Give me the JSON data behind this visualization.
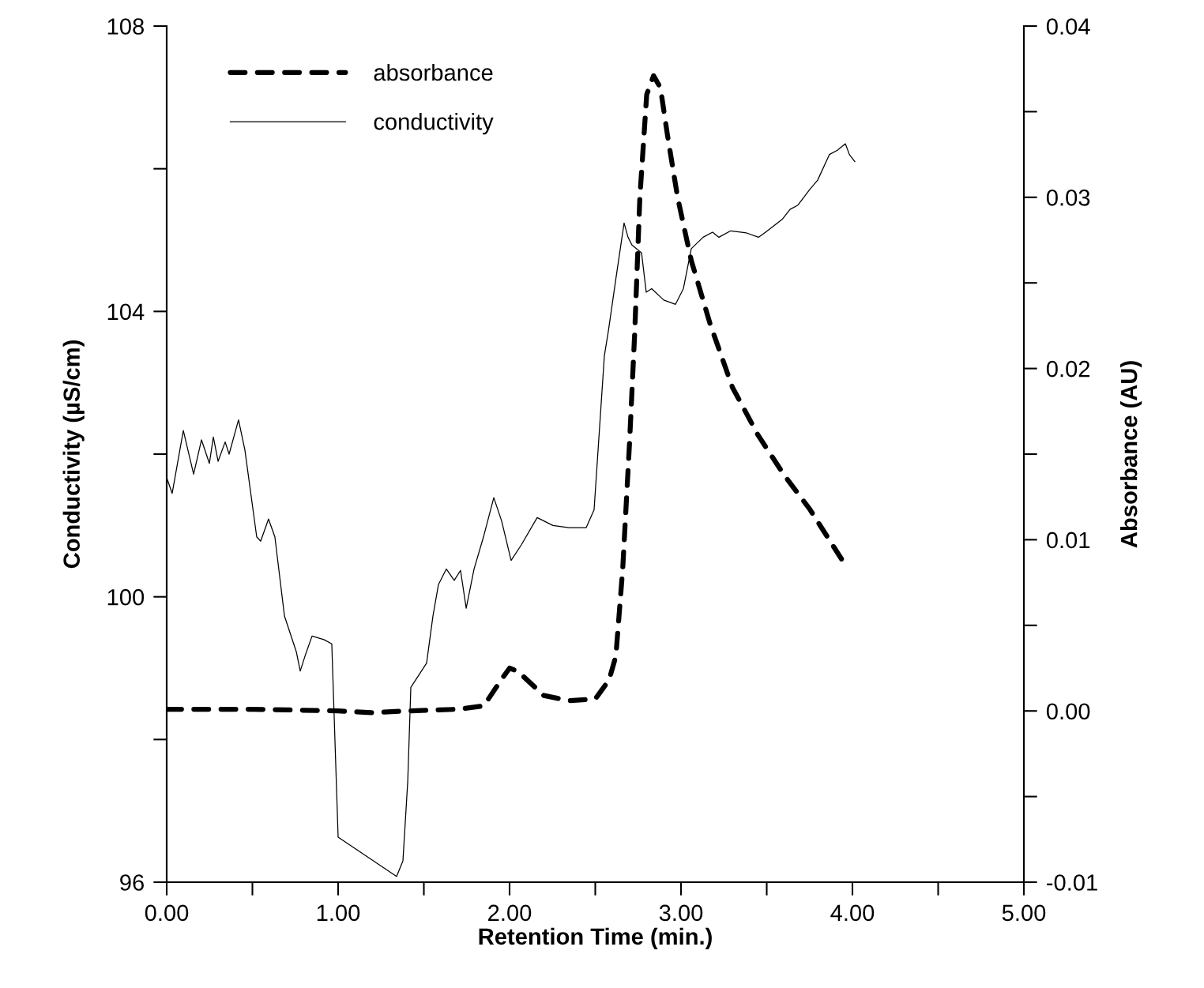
{
  "chart_data": {
    "type": "line",
    "xlabel": "Retention Time (min.)",
    "ylabel": "Conductivity (µS/cm)",
    "y2label": "Absorbance (AU)",
    "xlim": [
      0,
      5
    ],
    "xticks": [
      {
        "value": 0,
        "label": "0.00"
      },
      {
        "value": 1,
        "label": "1.00"
      },
      {
        "value": 2,
        "label": "2.00"
      },
      {
        "value": 3,
        "label": "3.00"
      },
      {
        "value": 4,
        "label": "4.00"
      },
      {
        "value": 5,
        "label": "5.00"
      }
    ],
    "ylim": [
      96,
      108
    ],
    "yticks": [
      96,
      100,
      104,
      108
    ],
    "y2lim": [
      -0.01,
      0.04
    ],
    "y2ticks": [
      -0.01,
      {
        "value": 0,
        "label": "0.00"
      },
      0.01,
      0.02,
      0.03,
      0.04
    ],
    "grid": false,
    "legend": "top left",
    "series": [
      {
        "name": "absorbance",
        "color": "#000000",
        "axis": "y2",
        "line_style": "dashed",
        "x": [
          0,
          0.5,
          1.0,
          1.2,
          1.4,
          1.7,
          1.85,
          1.95,
          2.0,
          2.05,
          2.2,
          2.35,
          2.5,
          2.58,
          2.62,
          2.66,
          2.7,
          2.73,
          2.76,
          2.8,
          2.84,
          2.88,
          2.92,
          2.98,
          3.06,
          3.17,
          3.3,
          3.45,
          3.6,
          3.75,
          3.96
        ],
        "values": [
          0.0001,
          0.0001,
          0.0,
          -0.0001,
          0.0,
          0.0001,
          0.0003,
          0.0018,
          0.0025,
          0.0023,
          0.0009,
          0.0006,
          0.0007,
          0.0018,
          0.0032,
          0.0083,
          0.0157,
          0.0221,
          0.03,
          0.036,
          0.0371,
          0.0364,
          0.0337,
          0.03,
          0.0263,
          0.0226,
          0.0189,
          0.0161,
          0.0138,
          0.0118,
          0.0085
        ]
      },
      {
        "name": "conductivity",
        "color": "#000000",
        "axis": "y",
        "line_style": "solid",
        "x": [
          0,
          0.032,
          0.097,
          0.157,
          0.203,
          0.249,
          0.272,
          0.3,
          0.341,
          0.364,
          0.419,
          0.456,
          0.525,
          0.548,
          0.594,
          0.631,
          0.687,
          0.756,
          0.779,
          0.811,
          0.848,
          0.917,
          0.963,
          1.0,
          1.341,
          1.378,
          1.406,
          1.424,
          1.516,
          1.553,
          1.585,
          1.631,
          1.677,
          1.714,
          1.747,
          1.793,
          1.848,
          1.908,
          1.954,
          2.009,
          2.069,
          2.161,
          2.253,
          2.346,
          2.447,
          2.493,
          2.553,
          2.576,
          2.622,
          2.668,
          2.691,
          2.714,
          2.77,
          2.797,
          2.829,
          2.899,
          2.968,
          3.014,
          3.06,
          3.129,
          3.184,
          3.221,
          3.29,
          3.382,
          3.452,
          3.498,
          3.59,
          3.636,
          3.682,
          3.751,
          3.797,
          3.866,
          3.912,
          3.959,
          3.982,
          4.014
        ],
        "values": [
          101.67,
          101.45,
          102.33,
          101.72,
          102.2,
          101.87,
          102.24,
          101.9,
          102.17,
          102.0,
          102.48,
          102.06,
          100.84,
          100.78,
          101.09,
          100.84,
          99.73,
          99.23,
          98.96,
          99.2,
          99.45,
          99.4,
          99.34,
          96.63,
          96.08,
          96.3,
          97.41,
          98.73,
          99.07,
          99.73,
          100.17,
          100.39,
          100.23,
          100.37,
          99.84,
          100.39,
          100.84,
          101.39,
          101.06,
          100.51,
          100.73,
          101.11,
          101.0,
          100.97,
          100.97,
          101.22,
          103.38,
          103.72,
          104.49,
          105.24,
          105.04,
          104.93,
          104.82,
          104.27,
          104.32,
          104.16,
          104.1,
          104.32,
          104.88,
          105.04,
          105.11,
          105.04,
          105.13,
          105.1,
          105.04,
          105.12,
          105.29,
          105.43,
          105.49,
          105.71,
          105.84,
          106.2,
          106.26,
          106.35,
          106.2,
          106.1
        ]
      }
    ]
  }
}
